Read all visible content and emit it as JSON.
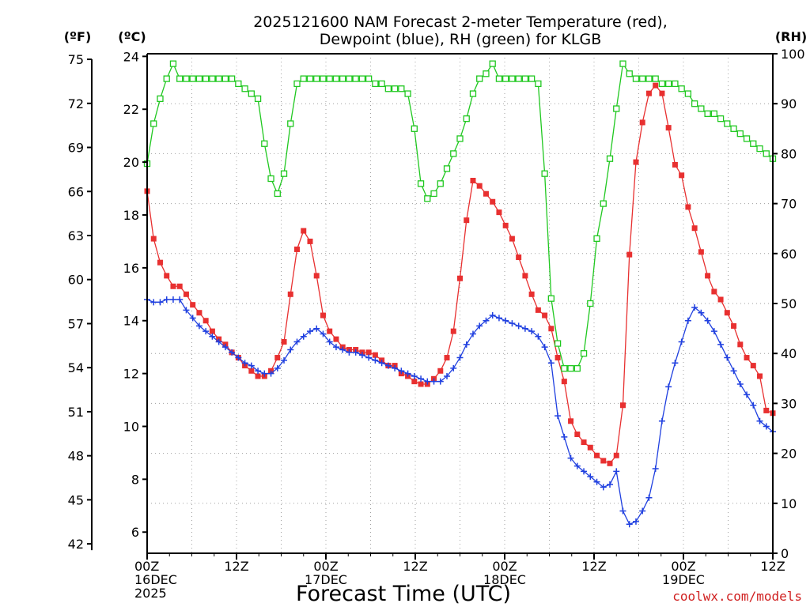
{
  "chart_data": {
    "type": "line",
    "title_lines": [
      "2025121600 NAM Forecast 2-meter Temperature (red),",
      "Dewpoint (blue), RH (green) for KLGB"
    ],
    "xlabel": "Forecast Time (UTC)",
    "credit": "coolwx.com/models",
    "left_axis_f": {
      "unit_label": "(ºF)",
      "ticks": [
        42,
        45,
        48,
        51,
        54,
        57,
        60,
        63,
        66,
        69,
        72,
        75
      ]
    },
    "left_axis_c": {
      "unit_label": "(ºC)",
      "ticks": [
        6,
        8,
        10,
        12,
        14,
        16,
        18,
        20,
        22,
        24
      ],
      "ylim": [
        5.2,
        24.1
      ]
    },
    "right_axis": {
      "unit_label": "(RH)",
      "ticks": [
        0,
        10,
        20,
        30,
        40,
        50,
        60,
        70,
        80,
        90,
        100
      ],
      "ylim": [
        0,
        100
      ]
    },
    "x_ticks": [
      {
        "hour": 0,
        "lines": [
          "00Z",
          "16DEC",
          "2025"
        ]
      },
      {
        "hour": 12,
        "lines": [
          "12Z"
        ]
      },
      {
        "hour": 24,
        "lines": [
          "00Z",
          "17DEC"
        ]
      },
      {
        "hour": 36,
        "lines": [
          "12Z"
        ]
      },
      {
        "hour": 48,
        "lines": [
          "00Z",
          "18DEC"
        ]
      },
      {
        "hour": 60,
        "lines": [
          "12Z"
        ]
      },
      {
        "hour": 72,
        "lines": [
          "00Z",
          "19DEC"
        ]
      },
      {
        "hour": 84,
        "lines": [
          "12Z"
        ]
      }
    ],
    "x_range_hours": [
      0,
      84
    ],
    "grid": true,
    "series": [
      {
        "name": "Temperature (red)",
        "color": "#e83030",
        "marker": "filled-square",
        "values": [
          18.9,
          17.1,
          16.2,
          15.7,
          15.3,
          15.3,
          15.0,
          14.6,
          14.3,
          14.0,
          13.6,
          13.3,
          13.1,
          12.8,
          12.6,
          12.3,
          12.1,
          11.9,
          11.9,
          12.1,
          12.6,
          13.2,
          15.0,
          16.7,
          17.4,
          17.0,
          15.7,
          14.2,
          13.6,
          13.3,
          13.0,
          12.9,
          12.9,
          12.8,
          12.8,
          12.7,
          12.5,
          12.3,
          12.3,
          12.0,
          11.9,
          11.7,
          11.6,
          11.6,
          11.8,
          12.1,
          12.6,
          13.6,
          15.6,
          17.8,
          19.3,
          19.1,
          18.8,
          18.5,
          18.1,
          17.6,
          17.1,
          16.4,
          15.7,
          15.0,
          14.4,
          14.2,
          13.7,
          12.6,
          11.7,
          10.2,
          9.7,
          9.4,
          9.2,
          8.9,
          8.7,
          8.6,
          8.9,
          10.8,
          16.5,
          20.0,
          21.5,
          22.6,
          22.9,
          22.6,
          21.3,
          19.9,
          19.5,
          18.3,
          17.5,
          16.6,
          15.7,
          15.1,
          14.8,
          14.3,
          13.8,
          13.1,
          12.6,
          12.3,
          11.9,
          10.6,
          10.5
        ]
      },
      {
        "name": "Dewpoint (blue)",
        "color": "#2040e0",
        "marker": "plus",
        "values": [
          14.8,
          14.7,
          14.7,
          14.8,
          14.8,
          14.8,
          14.4,
          14.1,
          13.8,
          13.6,
          13.4,
          13.2,
          13.0,
          12.8,
          12.6,
          12.4,
          12.3,
          12.1,
          12.0,
          12.0,
          12.2,
          12.5,
          12.9,
          13.2,
          13.4,
          13.6,
          13.7,
          13.5,
          13.2,
          13.0,
          12.9,
          12.8,
          12.8,
          12.7,
          12.6,
          12.5,
          12.4,
          12.3,
          12.2,
          12.1,
          12.0,
          11.9,
          11.8,
          11.7,
          11.7,
          11.7,
          11.9,
          12.2,
          12.6,
          13.1,
          13.5,
          13.8,
          14.0,
          14.2,
          14.1,
          14.0,
          13.9,
          13.8,
          13.7,
          13.6,
          13.4,
          13.0,
          12.4,
          10.4,
          9.6,
          8.8,
          8.5,
          8.3,
          8.1,
          7.9,
          7.7,
          7.8,
          8.3,
          6.8,
          6.3,
          6.4,
          6.8,
          7.3,
          8.4,
          10.2,
          11.5,
          12.4,
          13.2,
          14.0,
          14.5,
          14.3,
          14.0,
          13.6,
          13.1,
          12.6,
          12.1,
          11.6,
          11.2,
          10.8,
          10.2,
          10.0,
          9.8
        ]
      },
      {
        "name": "RH (green)",
        "color": "#20c820",
        "marker": "open-square",
        "values": [
          78,
          86,
          91,
          95,
          98,
          95,
          95,
          95,
          95,
          95,
          95,
          95,
          95,
          95,
          94,
          93,
          92,
          91,
          82,
          75,
          72,
          76,
          86,
          94,
          95,
          95,
          95,
          95,
          95,
          95,
          95,
          95,
          95,
          95,
          95,
          94,
          94,
          93,
          93,
          93,
          92,
          85,
          74,
          71,
          72,
          74,
          77,
          80,
          83,
          87,
          92,
          95,
          96,
          98,
          95,
          95,
          95,
          95,
          95,
          95,
          94,
          76,
          51,
          42,
          37,
          37,
          37,
          40,
          50,
          63,
          70,
          79,
          89,
          98,
          96,
          95,
          95,
          95,
          95,
          94,
          94,
          94,
          93,
          92,
          90,
          89,
          88,
          88,
          87,
          86,
          85,
          84,
          83,
          82,
          81,
          80,
          79
        ]
      }
    ]
  }
}
